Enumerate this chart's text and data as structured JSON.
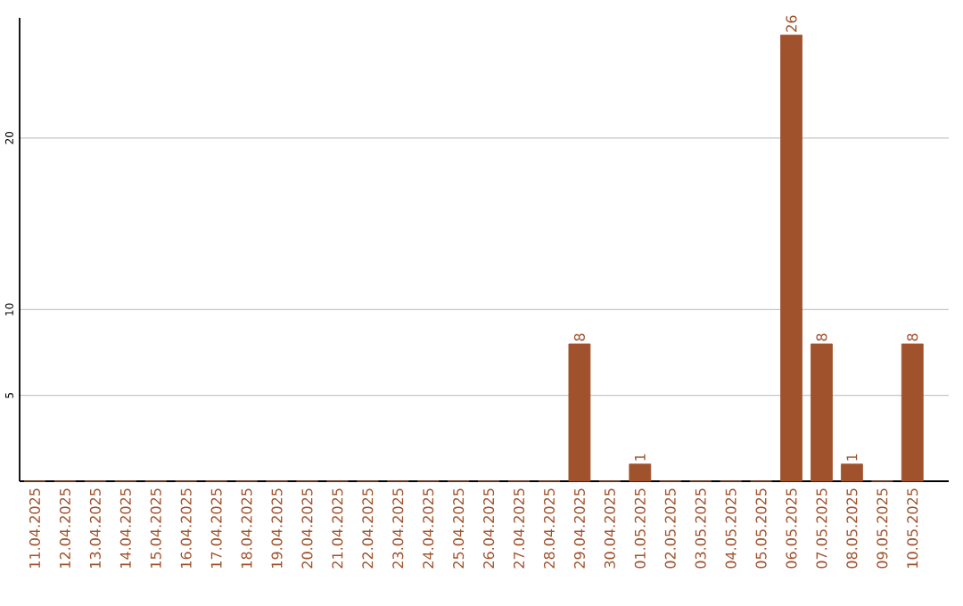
{
  "chart_data": {
    "type": "bar",
    "categories": [
      "11.04.2025",
      "12.04.2025",
      "13.04.2025",
      "14.04.2025",
      "15.04.2025",
      "16.04.2025",
      "17.04.2025",
      "18.04.2025",
      "19.04.2025",
      "20.04.2025",
      "21.04.2025",
      "22.04.2025",
      "23.04.2025",
      "24.04.2025",
      "25.04.2025",
      "26.04.2025",
      "27.04.2025",
      "28.04.2025",
      "29.04.2025",
      "30.04.2025",
      "01.05.2025",
      "02.05.2025",
      "03.05.2025",
      "04.05.2025",
      "05.05.2025",
      "06.05.2025",
      "07.05.2025",
      "08.05.2025",
      "09.05.2025",
      "10.05.2025"
    ],
    "values": [
      0,
      0,
      0,
      0,
      0,
      0,
      0,
      0,
      0,
      0,
      0,
      0,
      0,
      0,
      0,
      0,
      0,
      0,
      8,
      0,
      1,
      0,
      0,
      0,
      0,
      26,
      8,
      1,
      0,
      8
    ],
    "value_labels": [
      null,
      null,
      null,
      null,
      null,
      null,
      null,
      null,
      null,
      null,
      null,
      null,
      null,
      null,
      null,
      null,
      null,
      null,
      "8",
      null,
      "1",
      null,
      null,
      null,
      null,
      "26",
      "8",
      "1",
      null,
      "8"
    ],
    "color": "#a0522d",
    "ylim": [
      0,
      27
    ],
    "yticks": [
      5,
      10,
      20
    ],
    "grid": "y"
  }
}
